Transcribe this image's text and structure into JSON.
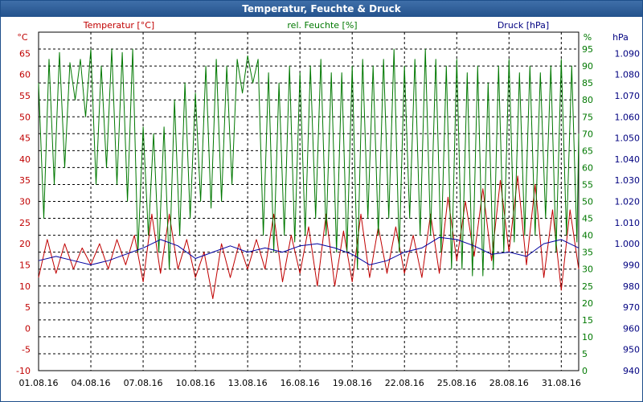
{
  "window": {
    "title": "Temperatur, Feuchte & Druck"
  },
  "headers": {
    "temp_unit": "°C",
    "temp_label": "Temperatur [°C]",
    "hum_label": "rel. Feuchte [%]",
    "hum_unit": "%",
    "press_label": "Druck [hPa]",
    "press_unit": "hPa"
  },
  "colors": {
    "temperature": "#c00000",
    "humidity": "#007800",
    "pressure": "#0000a0",
    "grid": "#000000"
  },
  "chart_data": {
    "type": "line",
    "grid": true,
    "x": {
      "ticks": [
        "01.08.16",
        "04.08.16",
        "07.08.16",
        "10.08.16",
        "13.08.16",
        "16.08.16",
        "19.08.16",
        "22.08.16",
        "25.08.16",
        "28.08.16",
        "31.08.16"
      ],
      "range_days": [
        0,
        31
      ]
    },
    "axes": {
      "temperature": {
        "ylim": [
          -10,
          70
        ],
        "ticks": [
          "-10",
          "-5",
          "0",
          "5",
          "10",
          "15",
          "20",
          "25",
          "30",
          "35",
          "40",
          "45",
          "50",
          "55",
          "60",
          "65"
        ]
      },
      "humidity": {
        "ylim": [
          0,
          100
        ],
        "ticks": [
          "0",
          "5",
          "10",
          "15",
          "20",
          "25",
          "30",
          "35",
          "40",
          "45",
          "50",
          "55",
          "60",
          "65",
          "70",
          "75",
          "80",
          "85",
          "90",
          "95"
        ]
      },
      "pressure": {
        "ylim": [
          940,
          1100
        ],
        "ticks": [
          "940",
          "950",
          "960",
          "970",
          "980",
          "990",
          "1.000",
          "1.010",
          "1.020",
          "1.030",
          "1.040",
          "1.050",
          "1.060",
          "1.070",
          "1.080",
          "1.090"
        ]
      }
    },
    "series": [
      {
        "name": "Temperatur [°C]",
        "axis": "temperature",
        "values": [
          [
            0,
            12
          ],
          [
            0.5,
            21
          ],
          [
            1,
            13
          ],
          [
            1.5,
            20
          ],
          [
            2,
            14
          ],
          [
            2.5,
            19
          ],
          [
            3,
            15
          ],
          [
            3.5,
            20
          ],
          [
            4,
            14
          ],
          [
            4.5,
            21
          ],
          [
            5,
            15
          ],
          [
            5.5,
            22
          ],
          [
            6,
            11
          ],
          [
            6.5,
            27
          ],
          [
            7,
            13
          ],
          [
            7.5,
            27
          ],
          [
            8,
            14
          ],
          [
            8.5,
            21
          ],
          [
            9,
            12
          ],
          [
            9.5,
            18
          ],
          [
            10,
            7
          ],
          [
            10.5,
            20
          ],
          [
            11,
            12
          ],
          [
            11.5,
            20
          ],
          [
            12,
            14
          ],
          [
            12.5,
            21
          ],
          [
            13,
            14
          ],
          [
            13.5,
            27
          ],
          [
            14,
            11
          ],
          [
            14.5,
            22
          ],
          [
            15,
            13
          ],
          [
            15.5,
            24
          ],
          [
            16,
            10
          ],
          [
            16.5,
            27
          ],
          [
            17,
            10
          ],
          [
            17.5,
            23
          ],
          [
            18,
            11
          ],
          [
            18.5,
            27
          ],
          [
            19,
            12
          ],
          [
            19.5,
            24
          ],
          [
            20,
            13
          ],
          [
            20.5,
            24
          ],
          [
            21,
            13
          ],
          [
            21.5,
            22
          ],
          [
            22,
            12
          ],
          [
            22.5,
            27
          ],
          [
            23,
            13
          ],
          [
            23.5,
            31
          ],
          [
            24,
            16
          ],
          [
            24.5,
            30
          ],
          [
            25,
            17
          ],
          [
            25.5,
            33
          ],
          [
            26,
            16
          ],
          [
            26.5,
            35
          ],
          [
            27,
            18
          ],
          [
            27.5,
            36
          ],
          [
            28,
            15
          ],
          [
            28.5,
            34
          ],
          [
            29,
            12
          ],
          [
            29.5,
            28
          ],
          [
            30,
            9
          ],
          [
            30.5,
            28
          ],
          [
            31,
            14
          ]
        ]
      },
      {
        "name": "rel. Feuchte [%]",
        "axis": "humidity",
        "values": [
          [
            0,
            85
          ],
          [
            0.3,
            45
          ],
          [
            0.6,
            92
          ],
          [
            0.9,
            55
          ],
          [
            1.2,
            94
          ],
          [
            1.5,
            60
          ],
          [
            1.8,
            91
          ],
          [
            2.1,
            80
          ],
          [
            2.4,
            92
          ],
          [
            2.7,
            75
          ],
          [
            3,
            95
          ],
          [
            3.3,
            55
          ],
          [
            3.6,
            90
          ],
          [
            3.9,
            60
          ],
          [
            4.2,
            95
          ],
          [
            4.5,
            55
          ],
          [
            4.8,
            94
          ],
          [
            5.1,
            50
          ],
          [
            5.4,
            95
          ],
          [
            5.7,
            35
          ],
          [
            6,
            72
          ],
          [
            6.3,
            40
          ],
          [
            6.6,
            70
          ],
          [
            6.9,
            35
          ],
          [
            7.2,
            72
          ],
          [
            7.5,
            30
          ],
          [
            7.8,
            80
          ],
          [
            8.1,
            40
          ],
          [
            8.4,
            85
          ],
          [
            8.7,
            45
          ],
          [
            9,
            82
          ],
          [
            9.3,
            50
          ],
          [
            9.6,
            90
          ],
          [
            9.9,
            48
          ],
          [
            10.2,
            92
          ],
          [
            10.5,
            50
          ],
          [
            10.8,
            90
          ],
          [
            11.1,
            55
          ],
          [
            11.4,
            92
          ],
          [
            11.7,
            82
          ],
          [
            12,
            93
          ],
          [
            12.3,
            85
          ],
          [
            12.6,
            92
          ],
          [
            12.9,
            40
          ],
          [
            13.2,
            88
          ],
          [
            13.5,
            35
          ],
          [
            13.8,
            85
          ],
          [
            14.1,
            40
          ],
          [
            14.4,
            90
          ],
          [
            14.7,
            38
          ],
          [
            15,
            88
          ],
          [
            15.3,
            40
          ],
          [
            15.6,
            90
          ],
          [
            15.9,
            45
          ],
          [
            16.2,
            92
          ],
          [
            16.5,
            40
          ],
          [
            16.8,
            88
          ],
          [
            17.1,
            35
          ],
          [
            17.4,
            88
          ],
          [
            17.7,
            35
          ],
          [
            18,
            90
          ],
          [
            18.3,
            30
          ],
          [
            18.6,
            92
          ],
          [
            18.9,
            45
          ],
          [
            19.2,
            90
          ],
          [
            19.5,
            40
          ],
          [
            19.8,
            92
          ],
          [
            20.1,
            45
          ],
          [
            20.4,
            95
          ],
          [
            20.7,
            35
          ],
          [
            21,
            90
          ],
          [
            21.3,
            45
          ],
          [
            21.6,
            92
          ],
          [
            21.9,
            40
          ],
          [
            22.2,
            95
          ],
          [
            22.5,
            40
          ],
          [
            22.8,
            92
          ],
          [
            23.1,
            35
          ],
          [
            23.4,
            90
          ],
          [
            23.7,
            30
          ],
          [
            24,
            92
          ],
          [
            24.3,
            30
          ],
          [
            24.6,
            88
          ],
          [
            24.9,
            28
          ],
          [
            25.2,
            90
          ],
          [
            25.5,
            28
          ],
          [
            25.8,
            85
          ],
          [
            26.1,
            30
          ],
          [
            26.4,
            90
          ],
          [
            26.7,
            35
          ],
          [
            27,
            92
          ],
          [
            27.3,
            38
          ],
          [
            27.6,
            88
          ],
          [
            27.9,
            40
          ],
          [
            28.2,
            90
          ],
          [
            28.5,
            40
          ],
          [
            28.8,
            88
          ],
          [
            29.1,
            45
          ],
          [
            29.4,
            90
          ],
          [
            29.7,
            35
          ],
          [
            30,
            92
          ],
          [
            30.3,
            40
          ],
          [
            30.6,
            90
          ],
          [
            30.9,
            38
          ],
          [
            31,
            70
          ]
        ]
      },
      {
        "name": "Druck [hPa]",
        "axis": "pressure",
        "values": [
          [
            0,
            992
          ],
          [
            1,
            994
          ],
          [
            2,
            992
          ],
          [
            3,
            990
          ],
          [
            4,
            992
          ],
          [
            5,
            995
          ],
          [
            6,
            998
          ],
          [
            7,
            1002
          ],
          [
            8,
            999
          ],
          [
            9,
            993
          ],
          [
            10,
            996
          ],
          [
            11,
            999
          ],
          [
            12,
            996
          ],
          [
            13,
            998
          ],
          [
            14,
            996
          ],
          [
            15,
            999
          ],
          [
            16,
            1000
          ],
          [
            17,
            998
          ],
          [
            18,
            995
          ],
          [
            19,
            990
          ],
          [
            20,
            992
          ],
          [
            21,
            996
          ],
          [
            22,
            998
          ],
          [
            23,
            1003
          ],
          [
            24,
            1002
          ],
          [
            25,
            999
          ],
          [
            26,
            995
          ],
          [
            27,
            996
          ],
          [
            28,
            994
          ],
          [
            29,
            1000
          ],
          [
            30,
            1002
          ],
          [
            31,
            998
          ]
        ]
      }
    ]
  }
}
